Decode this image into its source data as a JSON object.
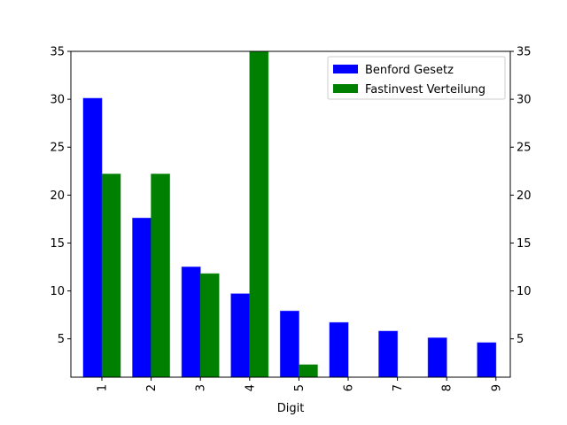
{
  "chart_data": {
    "type": "bar",
    "title": "",
    "xlabel": "Digit",
    "ylabel": "",
    "categories": [
      "1",
      "2",
      "3",
      "4",
      "5",
      "6",
      "7",
      "8",
      "9"
    ],
    "series": [
      {
        "name": "Benford Gesetz",
        "color": "#0000ff",
        "values": [
          30.1,
          17.6,
          12.5,
          9.7,
          7.9,
          6.7,
          5.8,
          5.1,
          4.6
        ]
      },
      {
        "name": "Fastinvest Verteilung",
        "color": "#008000",
        "values": [
          22.2,
          22.2,
          11.8,
          35.0,
          2.3,
          0,
          0,
          0,
          0
        ]
      }
    ],
    "ylim": [
      1,
      35
    ],
    "yticks": [
      5,
      10,
      15,
      20,
      25,
      30,
      35
    ],
    "ytick_labels": [
      "5",
      "10",
      "15",
      "20",
      "25",
      "30",
      "35"
    ],
    "right_axis_mirror": true,
    "xtick_rotation": 90,
    "legend_position": "upper-right",
    "grid": false
  }
}
